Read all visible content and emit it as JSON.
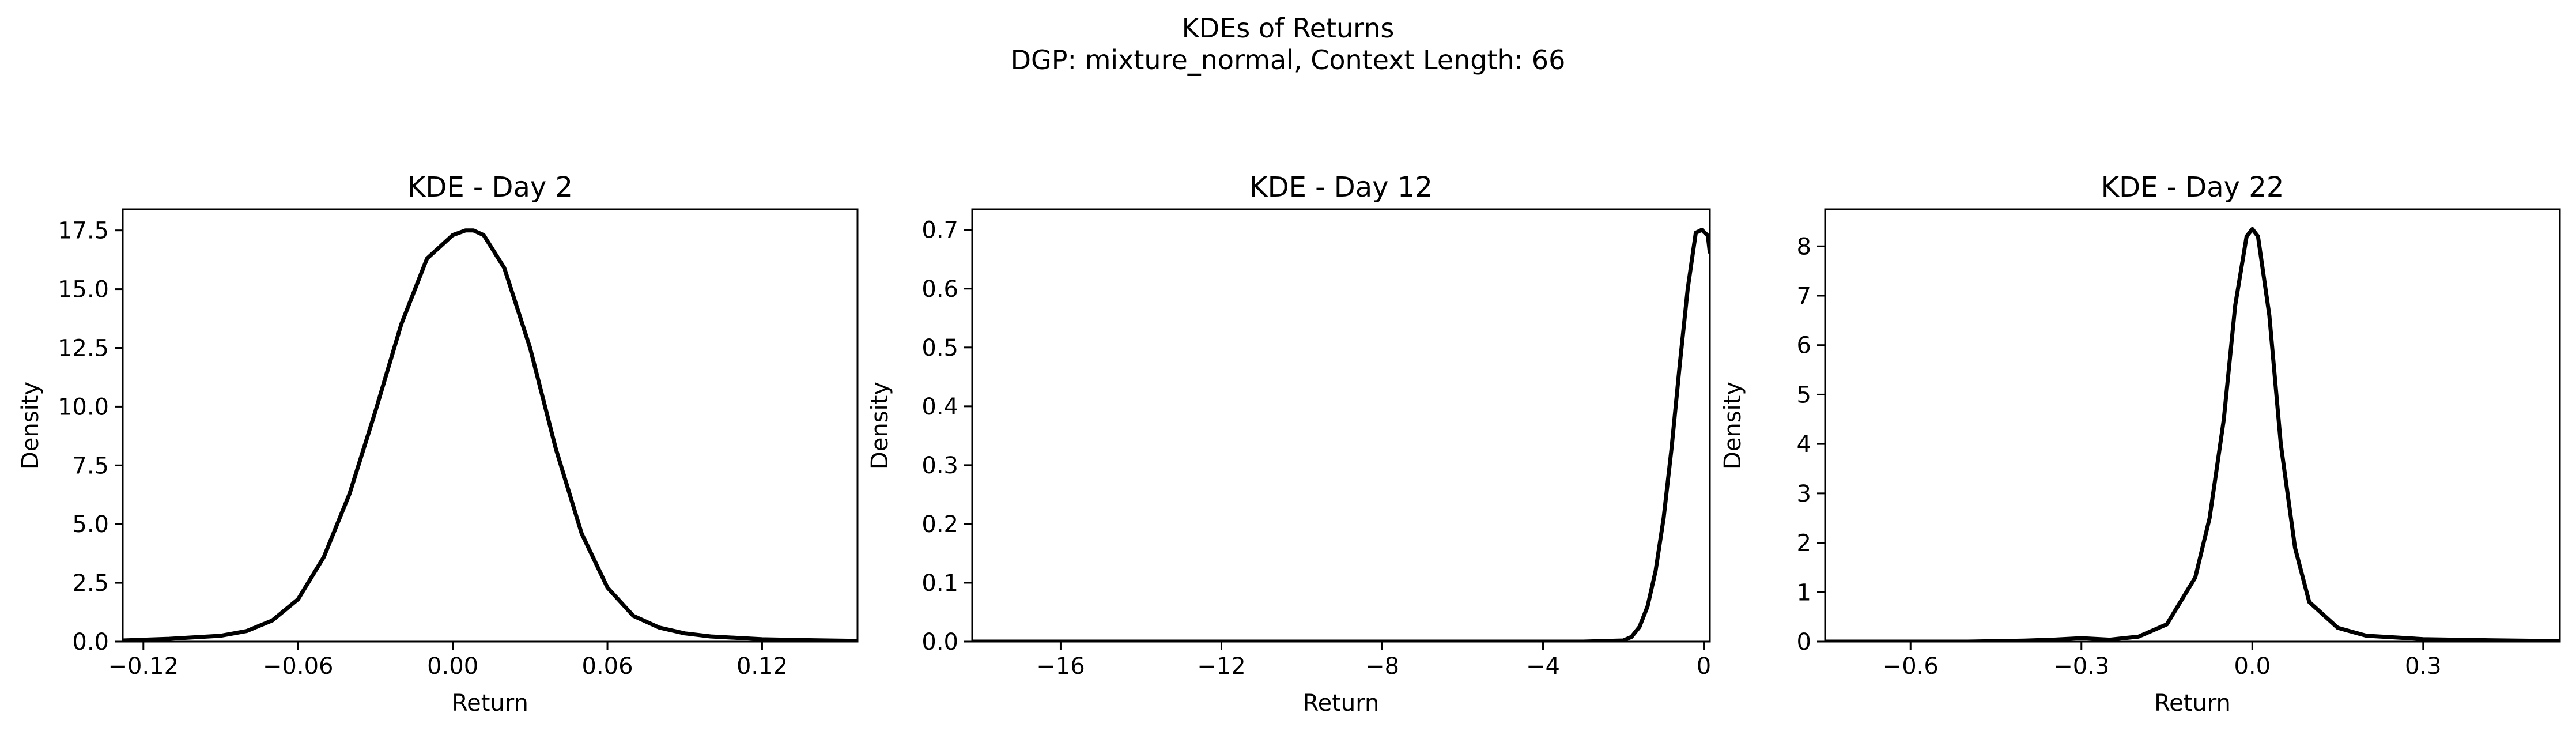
{
  "figure": {
    "title_line1": "KDEs of Returns",
    "title_line2": "DGP: mixture_normal, Context Length: 66"
  },
  "chart_data": [
    {
      "type": "line",
      "title": "KDE - Day 2",
      "xlabel": "Return",
      "ylabel": "Density",
      "xlim": [
        -0.128,
        0.157
      ],
      "ylim": [
        0,
        18.4
      ],
      "xticks": [
        -0.12,
        -0.06,
        0.0,
        0.06,
        0.12
      ],
      "xtick_labels": [
        "−0.12",
        "−0.06",
        "0.00",
        "0.06",
        "0.12"
      ],
      "yticks": [
        0,
        2.5,
        5,
        7.5,
        10,
        12.5,
        15,
        17.5
      ],
      "ytick_labels": [
        "0.0",
        "2.5",
        "5.0",
        "7.5",
        "10.0",
        "12.5",
        "15.0",
        "17.5"
      ],
      "grid": false,
      "line_color": "#000000",
      "series": [
        {
          "x": [
            -0.128,
            -0.11,
            -0.09,
            -0.08,
            -0.07,
            -0.06,
            -0.05,
            -0.04,
            -0.03,
            -0.02,
            -0.01,
            0.0,
            0.005,
            0.008,
            0.012,
            0.02,
            0.03,
            0.04,
            0.05,
            0.06,
            0.07,
            0.08,
            0.09,
            0.1,
            0.12,
            0.14,
            0.157
          ],
          "y": [
            0.05,
            0.12,
            0.25,
            0.45,
            0.9,
            1.8,
            3.6,
            6.3,
            9.8,
            13.5,
            16.3,
            17.3,
            17.5,
            17.5,
            17.3,
            15.9,
            12.5,
            8.2,
            4.6,
            2.3,
            1.1,
            0.6,
            0.35,
            0.22,
            0.1,
            0.06,
            0.03
          ]
        }
      ]
    },
    {
      "type": "line",
      "title": "KDE - Day 12",
      "xlabel": "Return",
      "ylabel": "Density",
      "xlim": [
        -18.2,
        0.15
      ],
      "ylim": [
        0,
        0.735
      ],
      "xticks": [
        -16,
        -12,
        -8,
        -4,
        0
      ],
      "xtick_labels": [
        "−16",
        "−12",
        "−8",
        "−4",
        "0"
      ],
      "yticks": [
        0,
        0.1,
        0.2,
        0.3,
        0.4,
        0.5,
        0.6,
        0.7
      ],
      "ytick_labels": [
        "0.0",
        "0.1",
        "0.2",
        "0.3",
        "0.4",
        "0.5",
        "0.6",
        "0.7"
      ],
      "grid": false,
      "line_color": "#000000",
      "series": [
        {
          "x": [
            -18.2,
            -10,
            -3,
            -2.0,
            -1.8,
            -1.6,
            -1.4,
            -1.2,
            -1.0,
            -0.8,
            -0.6,
            -0.4,
            -0.2,
            -0.05,
            0.1,
            0.15
          ],
          "y": [
            0.0,
            0.0,
            0.0,
            0.002,
            0.008,
            0.025,
            0.06,
            0.12,
            0.21,
            0.33,
            0.47,
            0.6,
            0.695,
            0.7,
            0.69,
            0.66
          ]
        }
      ]
    },
    {
      "type": "line",
      "title": "KDE - Day 22",
      "xlabel": "Return",
      "ylabel": "Density",
      "xlim": [
        -0.75,
        0.54
      ],
      "ylim": [
        0,
        8.75
      ],
      "xticks": [
        -0.6,
        -0.3,
        0.0,
        0.3
      ],
      "xtick_labels": [
        "−0.6",
        "−0.3",
        "0.0",
        "0.3"
      ],
      "yticks": [
        0,
        1,
        2,
        3,
        4,
        5,
        6,
        7,
        8
      ],
      "ytick_labels": [
        "0",
        "1",
        "2",
        "3",
        "4",
        "5",
        "6",
        "7",
        "8"
      ],
      "grid": false,
      "line_color": "#000000",
      "series": [
        {
          "x": [
            -0.75,
            -0.5,
            -0.4,
            -0.35,
            -0.3,
            -0.25,
            -0.2,
            -0.15,
            -0.1,
            -0.075,
            -0.05,
            -0.03,
            -0.01,
            0.0,
            0.01,
            0.03,
            0.05,
            0.075,
            0.1,
            0.15,
            0.2,
            0.3,
            0.4,
            0.54
          ],
          "y": [
            0.0,
            0.0,
            0.02,
            0.04,
            0.07,
            0.04,
            0.1,
            0.35,
            1.3,
            2.5,
            4.5,
            6.8,
            8.2,
            8.35,
            8.2,
            6.6,
            4.0,
            1.9,
            0.8,
            0.28,
            0.12,
            0.05,
            0.03,
            0.01
          ]
        }
      ]
    }
  ]
}
